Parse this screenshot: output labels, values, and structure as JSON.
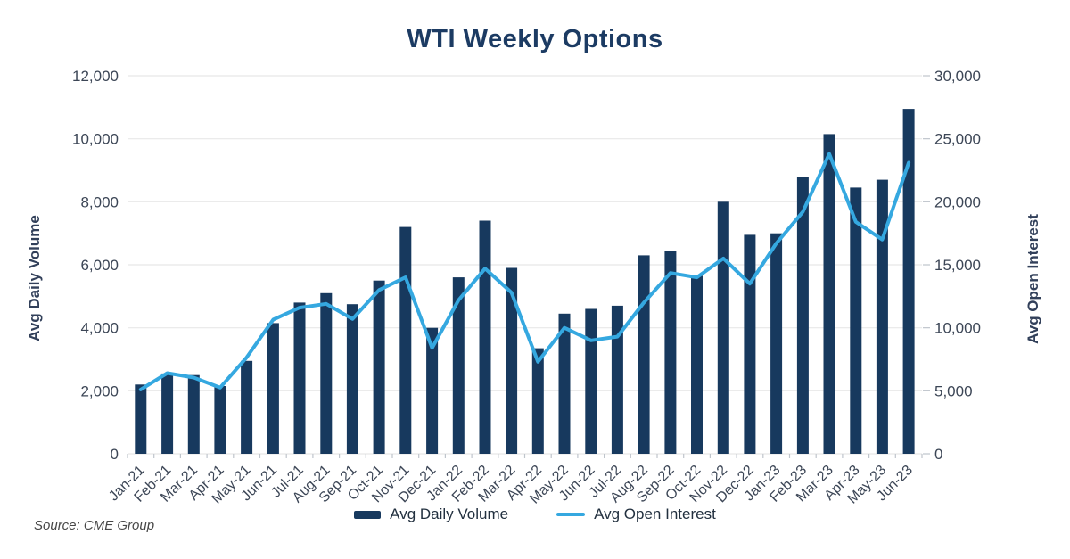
{
  "title": "WTI Weekly Options",
  "source": "Source: CME Group",
  "legend": {
    "volume_label": "Avg Daily Volume",
    "oi_label": "Avg Open Interest"
  },
  "axes": {
    "left_title": "Avg Daily Volume",
    "right_title": "Avg Open Interest"
  },
  "colors": {
    "navy": "#17395E",
    "blue": "#35A8E0",
    "grid": "#E8E8E8",
    "axis_tick": "#BFC5CC",
    "tick_text": "#3C4656",
    "title_text": "#1C3B63",
    "axis_title_text": "#32405A",
    "legend_text": "#22303F",
    "source_text": "#474747"
  },
  "chart_data": {
    "type": "bar",
    "title": "WTI Weekly Options",
    "grid": true,
    "legend_position": "bottom",
    "categories": [
      "Jan-21",
      "Feb-21",
      "Mar-21",
      "Apr-21",
      "May-21",
      "Jun-21",
      "Jul-21",
      "Aug-21",
      "Sep-21",
      "Oct-21",
      "Nov-21",
      "Dec-21",
      "Jan-22",
      "Feb-22",
      "Mar-22",
      "Apr-22",
      "May-22",
      "Jun-22",
      "Jul-22",
      "Aug-22",
      "Sep-22",
      "Oct-22",
      "Nov-22",
      "Dec-22",
      "Jan-23",
      "Feb-23",
      "Mar-23",
      "Apr-23",
      "May-23",
      "Jun-23"
    ],
    "series": [
      {
        "name": "Avg Daily Volume",
        "type": "bar",
        "axis": "left",
        "values": [
          2200,
          2550,
          2500,
          2150,
          2950,
          4150,
          4800,
          5100,
          4750,
          5500,
          7200,
          4000,
          5600,
          7400,
          5900,
          3350,
          4450,
          4600,
          4700,
          6300,
          6450,
          5650,
          8000,
          6950,
          7000,
          8800,
          10150,
          8450,
          8700,
          10950
        ]
      },
      {
        "name": "Avg Open Interest",
        "type": "line",
        "axis": "right",
        "values": [
          5100,
          6400,
          6050,
          5250,
          7650,
          10650,
          11600,
          11900,
          10700,
          13000,
          14000,
          8400,
          12200,
          14700,
          12800,
          7300,
          10000,
          9000,
          9300,
          12000,
          14350,
          14000,
          15500,
          13500,
          16700,
          19200,
          23800,
          18400,
          17000,
          23100
        ]
      }
    ],
    "left_axis": {
      "label": "Avg Daily Volume",
      "range": [
        0,
        12000
      ],
      "tick_step": 2000,
      "tick_labels": [
        "12,000",
        "10,000",
        "8,000",
        "6,000",
        "4,000",
        "2,000",
        "0"
      ]
    },
    "right_axis": {
      "label": "Avg Open Interest",
      "range": [
        0,
        30000
      ],
      "tick_step": 5000,
      "tick_labels": [
        "30,000",
        "25,000",
        "20,000",
        "15,000",
        "10,000",
        "5,000",
        "0"
      ]
    }
  }
}
